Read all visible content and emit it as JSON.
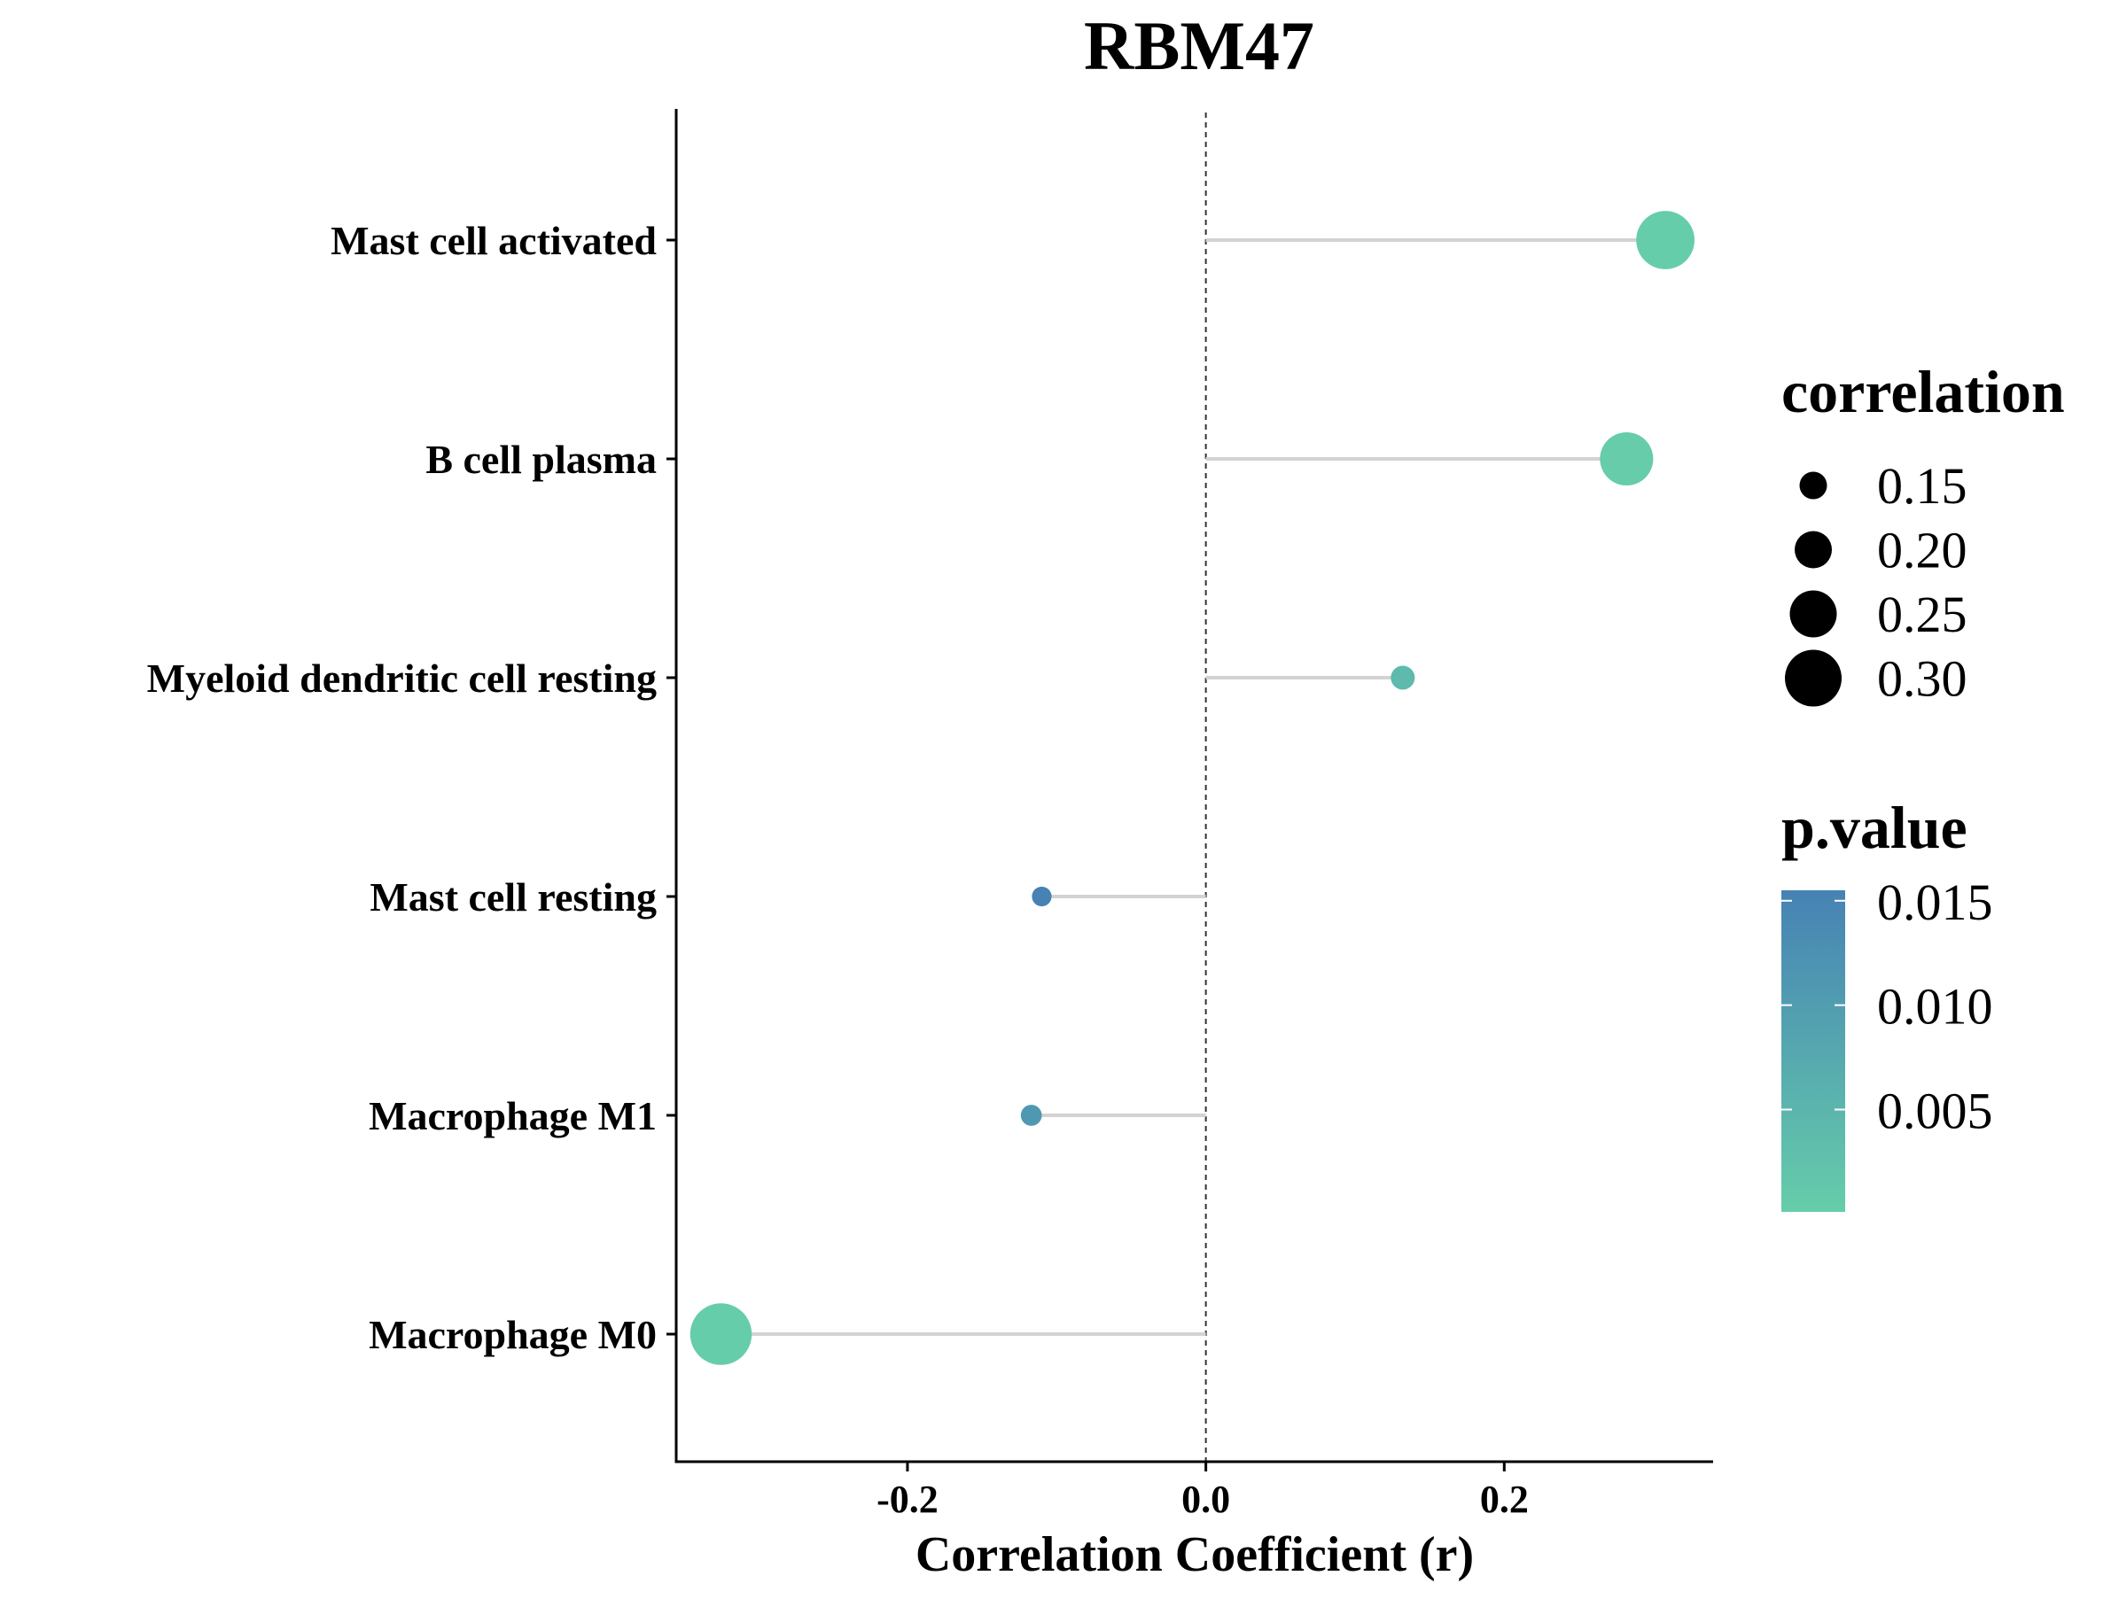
{
  "chart_data": {
    "type": "lollipop",
    "title": "RBM47",
    "xlabel": "Correlation Coefficient (r)",
    "ylabel": "",
    "xlim": [
      -0.355,
      0.34
    ],
    "x_ticks": [
      -0.2,
      0.0,
      0.2
    ],
    "x_tick_labels": [
      "-0.2",
      "0.0",
      "0.2"
    ],
    "reference_line": 0.0,
    "categories": [
      "Mast cell activated",
      "B cell plasma",
      "Myeloid dendritic cell resting",
      "Mast cell resting",
      "Macrophage M1",
      "Macrophage M0"
    ],
    "values": [
      0.308,
      0.282,
      0.132,
      -0.11,
      -0.117,
      -0.325
    ],
    "size_values": [
      0.308,
      0.282,
      0.132,
      0.11,
      0.117,
      0.325
    ],
    "p_values": [
      0.0001,
      0.0003,
      0.004,
      0.0155,
      0.011,
      0.0001
    ],
    "legend_size": {
      "title": "correlation",
      "entries": [
        0.15,
        0.2,
        0.25,
        0.3
      ],
      "labels": [
        "0.15",
        "0.20",
        "0.25",
        "0.30"
      ]
    },
    "legend_color": {
      "title": "p.value",
      "ticks": [
        0.015,
        0.01,
        0.005
      ],
      "labels": [
        "0.015",
        "0.010",
        "0.005"
      ],
      "range": [
        0.0001,
        0.0155
      ],
      "low_color": "#66CDAA",
      "high_color": "#4682B4"
    },
    "stem_color": "#d3d3d3",
    "grid": false,
    "legend_position": "right"
  }
}
